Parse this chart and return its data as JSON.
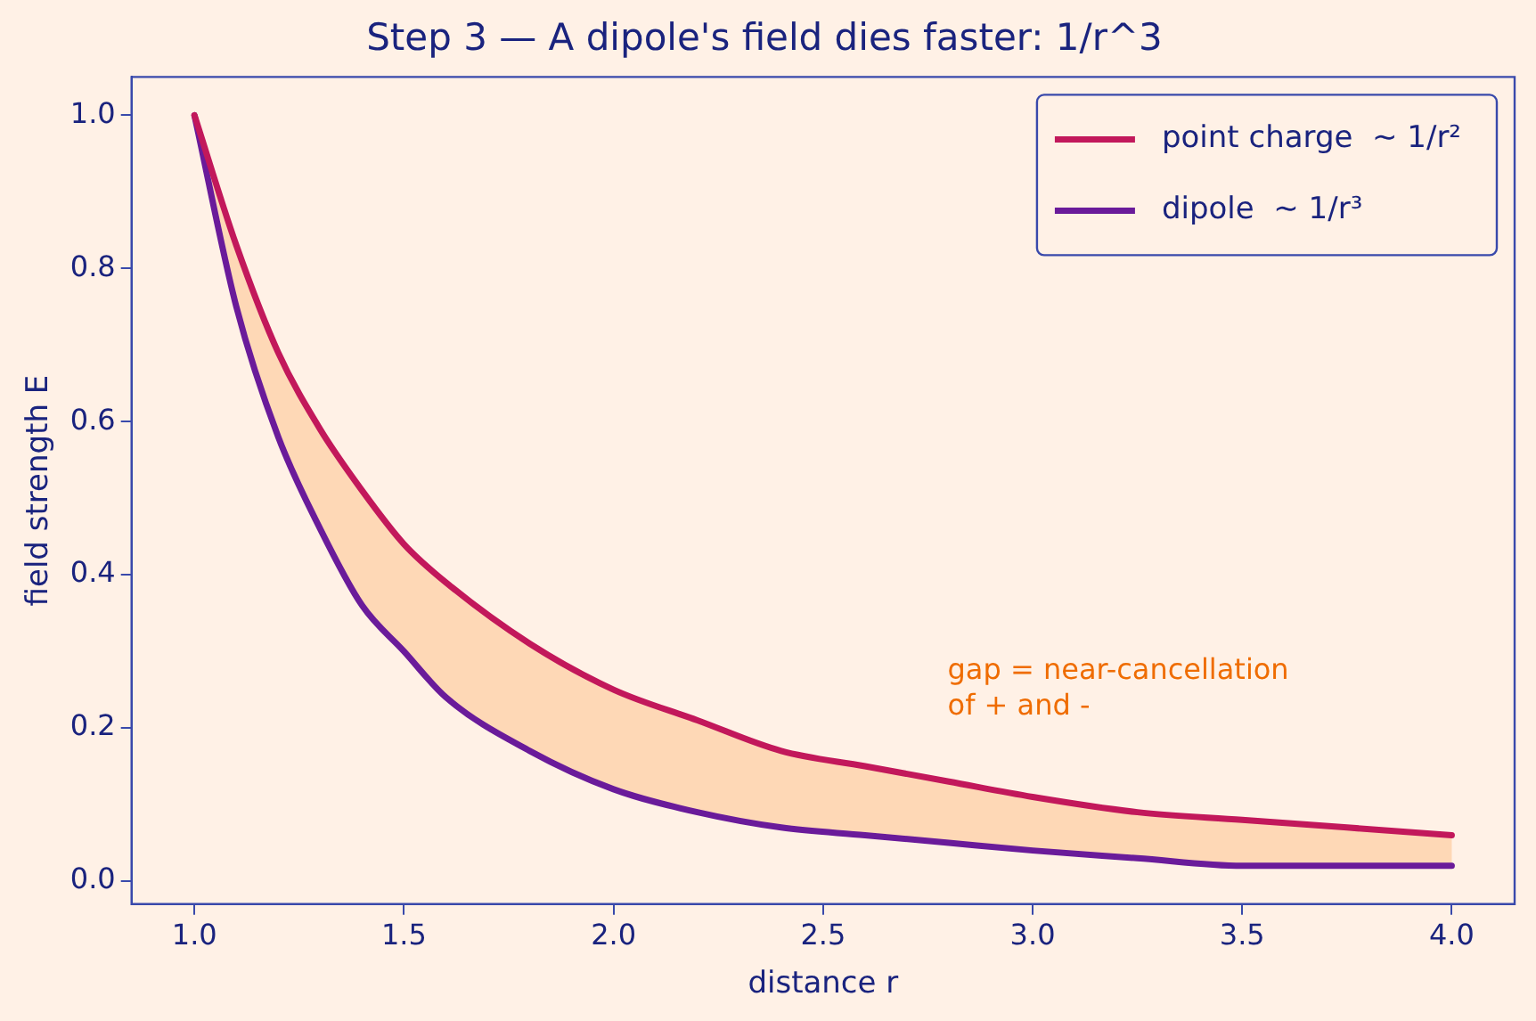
{
  "chart_data": {
    "type": "line",
    "title": "Step 3 — A dipole's field dies faster: 1/r^3",
    "xlabel": "distance r",
    "ylabel": "field strength E",
    "x": [
      1.0,
      1.1,
      1.2,
      1.3,
      1.4,
      1.5,
      1.6,
      1.8,
      2.0,
      2.2,
      2.4,
      2.6,
      2.8,
      3.0,
      3.25,
      3.5,
      3.75,
      4.0
    ],
    "series": [
      {
        "name": "point charge  ~ 1/r²",
        "color": "#c2185b",
        "values": [
          1.0,
          0.83,
          0.69,
          0.59,
          0.51,
          0.44,
          0.39,
          0.31,
          0.25,
          0.21,
          0.17,
          0.15,
          0.13,
          0.11,
          0.09,
          0.08,
          0.07,
          0.06
        ],
        "lower": [
          1.0,
          0.75,
          0.58,
          0.46,
          0.36,
          0.3,
          0.24,
          0.17,
          0.12,
          0.09,
          0.07,
          0.06,
          0.05,
          0.04,
          0.03,
          0.02,
          0.02,
          0.02
        ],
        "upper": [
          1.0,
          0.83,
          0.69,
          0.59,
          0.51,
          0.44,
          0.39,
          0.31,
          0.25,
          0.21,
          0.17,
          0.15,
          0.13,
          0.11,
          0.09,
          0.08,
          0.07,
          0.06
        ]
      },
      {
        "name": "dipole  ~ 1/r³",
        "color": "#6a1b9a",
        "values": [
          1.0,
          0.75,
          0.58,
          0.46,
          0.36,
          0.3,
          0.24,
          0.17,
          0.12,
          0.09,
          0.07,
          0.06,
          0.05,
          0.04,
          0.03,
          0.02,
          0.02,
          0.02
        ]
      }
    ],
    "xlim": [
      0.85,
      4.15
    ],
    "xticks": [
      {
        "value": 1,
        "label": "1.0"
      },
      {
        "value": 1.5,
        "label": "1.5"
      },
      {
        "value": 2,
        "label": "2.0"
      },
      {
        "value": 2.5,
        "label": "2.5"
      },
      {
        "value": 3,
        "label": "3.0"
      },
      {
        "value": 3.5,
        "label": "3.5"
      },
      {
        "value": 4,
        "label": "4.0"
      }
    ],
    "ylim": [
      -0.03,
      1.05
    ],
    "yticks": [
      {
        "value": 0,
        "label": "0.0"
      },
      {
        "value": 0.2,
        "label": "0.2"
      },
      {
        "value": 0.4,
        "label": "0.4"
      },
      {
        "value": 0.6,
        "label": "0.6"
      },
      {
        "value": 0.8,
        "label": "0.8"
      },
      {
        "value": 1,
        "label": "1.0"
      }
    ],
    "annotations": [
      "gap = near-cancellation\nof + and -"
    ],
    "legend": "top right",
    "marker": "none",
    "line_style": "solid"
  }
}
